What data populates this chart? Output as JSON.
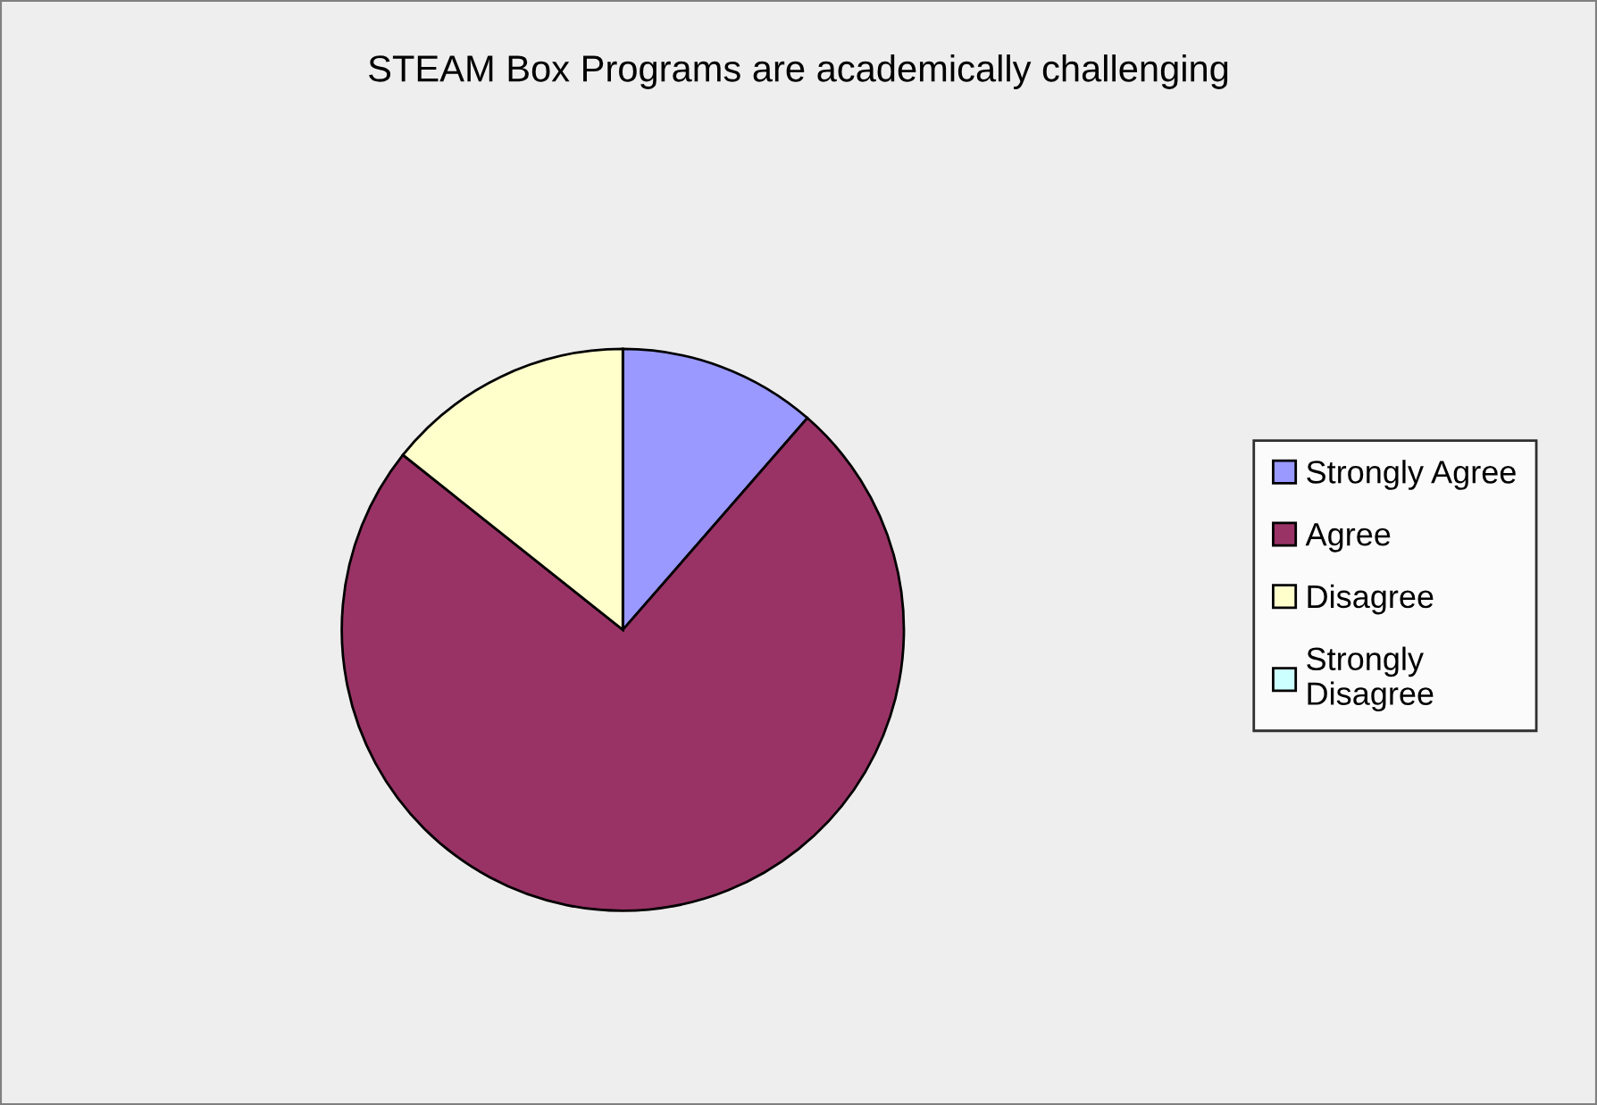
{
  "chart_data": {
    "type": "pie",
    "title": "STEAM Box Programs are academically challenging",
    "categories": [
      "Strongly Agree",
      "Agree",
      "Disagree",
      "Strongly Disagree"
    ],
    "values": [
      11.4,
      74.3,
      14.3,
      0
    ],
    "colors": [
      "#9999ff",
      "#993366",
      "#ffffcc",
      "#ccffff"
    ],
    "legend": "right"
  }
}
